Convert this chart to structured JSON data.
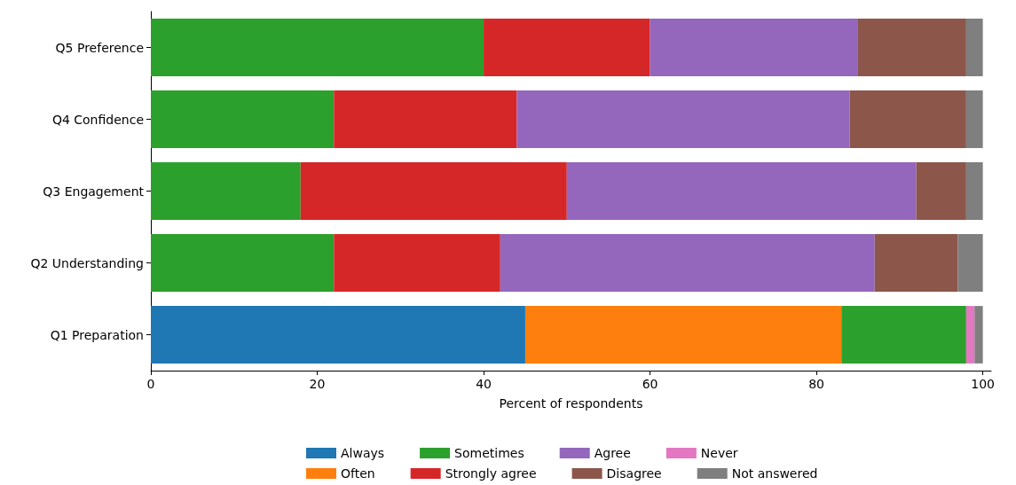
{
  "chart_data": {
    "type": "bar",
    "orientation": "horizontal",
    "stacked": true,
    "xlabel": "Percent of respondents",
    "categories": [
      "Q5 Preference",
      "Q4 Confidence",
      "Q3 Engagement",
      "Q2 Understanding",
      "Q1 Preparation"
    ],
    "series": [
      {
        "name": "Always",
        "color": "#1f77b4",
        "values": [
          null,
          null,
          null,
          null,
          45
        ]
      },
      {
        "name": "Often",
        "color": "#ff7f0e",
        "values": [
          null,
          null,
          null,
          null,
          38
        ]
      },
      {
        "name": "Sometimes",
        "color": "#2ca02c",
        "values": [
          40,
          22,
          18,
          22,
          15
        ]
      },
      {
        "name": "Strongly agree",
        "color": "#d62728",
        "values": [
          20,
          22,
          32,
          20,
          null
        ]
      },
      {
        "name": "Agree",
        "color": "#9467bd",
        "values": [
          25,
          40,
          42,
          45,
          null
        ]
      },
      {
        "name": "Disagree",
        "color": "#8c564b",
        "values": [
          13,
          14,
          6,
          10,
          null
        ]
      },
      {
        "name": "Never",
        "color": "#e377c2",
        "values": [
          null,
          null,
          null,
          null,
          1
        ]
      },
      {
        "name": "Not answered",
        "color": "#7f7f7f",
        "values": [
          2,
          2,
          2,
          3,
          1
        ]
      }
    ],
    "xlim": [
      0,
      101
    ],
    "xticks": [
      0,
      20,
      40,
      60,
      80,
      100
    ],
    "grid": false,
    "legend": "bottom"
  }
}
